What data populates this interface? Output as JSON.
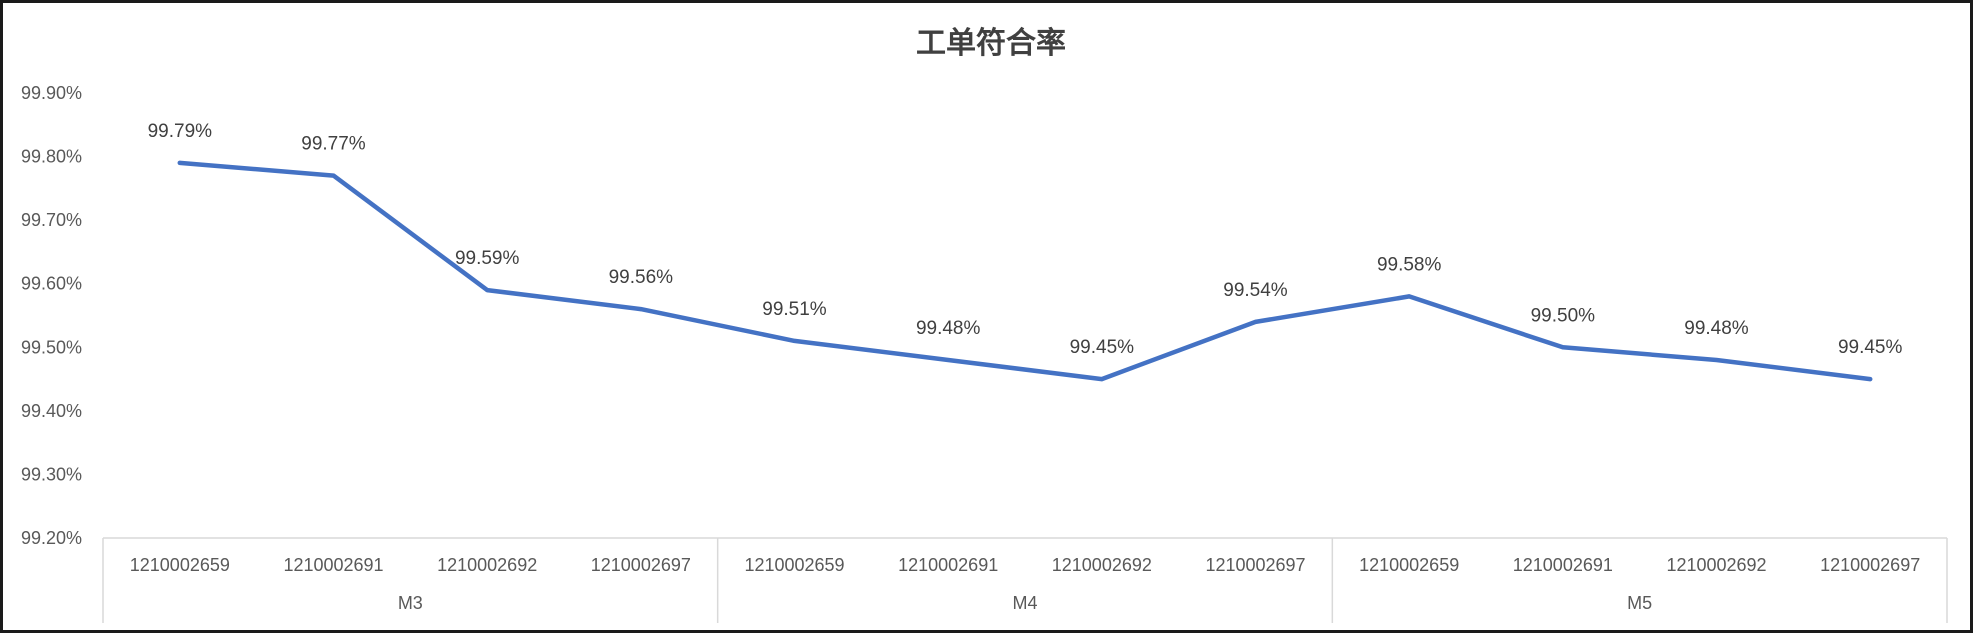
{
  "chart_data": {
    "type": "line",
    "title": "工单符合率",
    "xlabel": "",
    "ylabel": "",
    "ylim": [
      0.992,
      0.999
    ],
    "yticks": [
      "99.20%",
      "99.30%",
      "99.40%",
      "99.50%",
      "99.60%",
      "99.70%",
      "99.80%",
      "99.90%"
    ],
    "grid": false,
    "legend": "none",
    "line_color": "#4472C4",
    "groups": [
      {
        "label": "M3",
        "categories": [
          "1210002659",
          "1210002691",
          "1210002692",
          "1210002697"
        ]
      },
      {
        "label": "M4",
        "categories": [
          "1210002659",
          "1210002691",
          "1210002692",
          "1210002697"
        ]
      },
      {
        "label": "M5",
        "categories": [
          "1210002659",
          "1210002691",
          "1210002692",
          "1210002697"
        ]
      }
    ],
    "series": [
      {
        "values": [
          0.9979,
          0.9977,
          0.9959,
          0.9956,
          0.9951,
          0.9948,
          0.9945,
          0.9954,
          0.9958,
          0.995,
          0.9948,
          0.9945
        ],
        "labels": [
          "99.79%",
          "99.77%",
          "99.59%",
          "99.56%",
          "99.51%",
          "99.48%",
          "99.45%",
          "99.54%",
          "99.58%",
          "99.50%",
          "99.48%",
          "99.45%"
        ]
      }
    ]
  }
}
